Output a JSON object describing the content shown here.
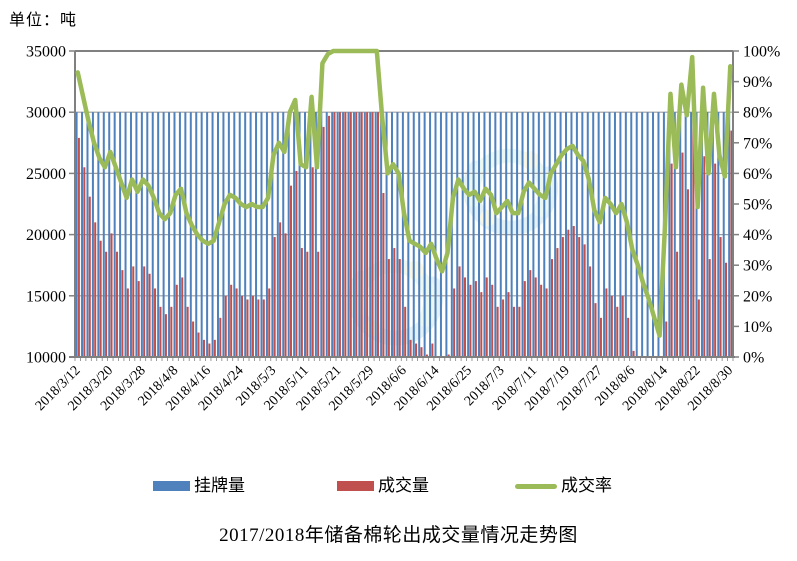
{
  "unit_label": "单位：吨",
  "colors": {
    "listed_bar": "#4f81bd",
    "deal_bar": "#c0504d",
    "rate_line": "#9bbb59",
    "grid": "#9d9d9d",
    "axis": "#808080",
    "text": "#000000"
  },
  "chart_data": {
    "type": "combo",
    "title": "2017/2018年储备棉轮出成交量情况走势图",
    "unit_note": "单位：吨",
    "n_categories": 121,
    "x_tick_every": 6,
    "x_tick_labels": [
      "2018/3/12",
      "2018/3/20",
      "2018/3/28",
      "2018/4/8",
      "2018/4/16",
      "2018/4/24",
      "2018/5/3",
      "2018/5/11",
      "2018/5/21",
      "2018/5/29",
      "2018/6/6",
      "2018/6/14",
      "2018/6/25",
      "2018/7/3",
      "2018/7/11",
      "2018/7/19",
      "2018/7/27",
      "2018/8/6",
      "2018/8/14",
      "2018/8/22",
      "2018/8/30"
    ],
    "y_left": {
      "min": 10000,
      "max": 35000,
      "step": 5000
    },
    "y_right": {
      "min": 0,
      "max": 100,
      "step": 10,
      "suffix": "%"
    },
    "legend_position": "bottom",
    "grid": "horizontal-only",
    "series": [
      {
        "name": "挂牌量",
        "type": "bar",
        "axis": "left",
        "color": "#4f81bd",
        "constant_value": 30000,
        "count": 121
      },
      {
        "name": "成交量",
        "type": "bar",
        "axis": "left",
        "color": "#c0504d",
        "values": [
          27900,
          25500,
          23100,
          21000,
          19500,
          18600,
          20100,
          18600,
          17100,
          15600,
          17400,
          16200,
          17400,
          16800,
          15600,
          14100,
          13500,
          14100,
          15900,
          16500,
          14100,
          12900,
          12000,
          11400,
          11100,
          11400,
          13200,
          15000,
          15900,
          15600,
          15000,
          14700,
          15000,
          14700,
          14700,
          15600,
          19800,
          21000,
          20100,
          24000,
          25200,
          18900,
          18600,
          25500,
          18600,
          28800,
          29700,
          30000,
          30000,
          30000,
          30000,
          30000,
          30000,
          30000,
          30000,
          30000,
          23400,
          18000,
          18900,
          18000,
          14100,
          11400,
          11100,
          10800,
          10200,
          11100,
          9600,
          8400,
          10200,
          15600,
          17400,
          16500,
          15900,
          16200,
          15300,
          16500,
          15900,
          14100,
          14700,
          15300,
          14100,
          14100,
          16200,
          17100,
          16500,
          15900,
          15600,
          18000,
          18900,
          19800,
          20400,
          20700,
          19800,
          19200,
          17400,
          14400,
          13200,
          15600,
          15000,
          14100,
          15000,
          13200,
          10500,
          9000,
          7200,
          5700,
          3900,
          2100,
          12900,
          25800,
          18600,
          26700,
          23700,
          29400,
          14700,
          26400,
          18000,
          25800,
          19800,
          17700,
          28500
        ]
      },
      {
        "name": "成交率",
        "type": "line",
        "axis": "right",
        "unit": "%",
        "color": "#9bbb59",
        "values": [
          93,
          85,
          77,
          70,
          65,
          62,
          67,
          62,
          57,
          52,
          58,
          54,
          58,
          56,
          52,
          47,
          45,
          47,
          53,
          55,
          47,
          43,
          40,
          38,
          37,
          38,
          44,
          50,
          53,
          52,
          50,
          49,
          50,
          49,
          49,
          52,
          66,
          70,
          67,
          80,
          84,
          63,
          62,
          85,
          62,
          96,
          99,
          100,
          100,
          100,
          100,
          100,
          100,
          100,
          100,
          100,
          78,
          60,
          63,
          60,
          47,
          38,
          37,
          36,
          34,
          37,
          32,
          28,
          34,
          52,
          58,
          55,
          53,
          54,
          51,
          55,
          53,
          47,
          49,
          51,
          47,
          47,
          54,
          57,
          55,
          53,
          52,
          60,
          63,
          66,
          68,
          69,
          66,
          64,
          58,
          48,
          44,
          52,
          50,
          47,
          50,
          44,
          35,
          30,
          24,
          19,
          13,
          7,
          43,
          86,
          62,
          89,
          79,
          98,
          49,
          88,
          60,
          86,
          66,
          59,
          95
        ]
      }
    ]
  }
}
